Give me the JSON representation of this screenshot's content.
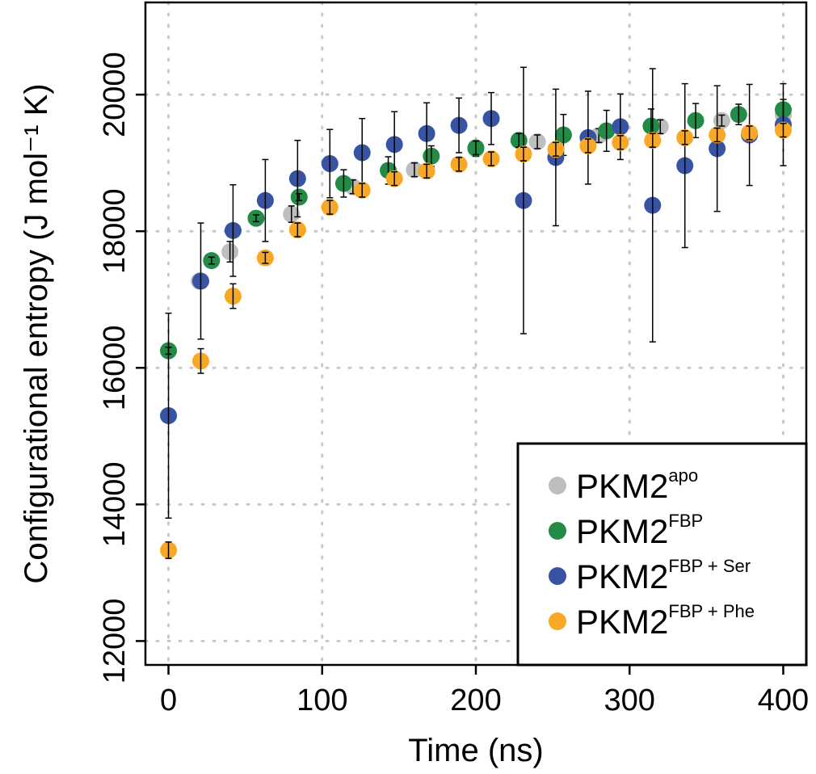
{
  "chart_data": {
    "type": "scatter",
    "xlabel": "Time (ns)",
    "ylabel": "Configurational entropy (J mol⁻¹ K)",
    "xlim": [
      -15,
      415
    ],
    "ylim": [
      11650,
      21350
    ],
    "x_ticks": [
      0,
      100,
      200,
      300,
      400
    ],
    "y_ticks": [
      12000,
      14000,
      16000,
      18000,
      20000
    ],
    "x_tick_labels": [
      "0",
      "100",
      "200",
      "300",
      "400"
    ],
    "y_tick_labels": [
      "12000",
      "14000",
      "16000",
      "18000",
      "20000"
    ],
    "grid": true,
    "legend_position": "bottom-right",
    "series": [
      {
        "name": "PKM2",
        "sup": "apo",
        "color": "#bebebe",
        "points": [
          {
            "x": 0,
            "y": 16250,
            "err": 100
          },
          {
            "x": 20,
            "y": 17270,
            "err": 80
          },
          {
            "x": 40,
            "y": 17700,
            "err": 150
          },
          {
            "x": 80,
            "y": 18250,
            "err": 120
          },
          {
            "x": 120,
            "y": 18650,
            "err": 100
          },
          {
            "x": 160,
            "y": 18900,
            "err": 100
          },
          {
            "x": 200,
            "y": 19200,
            "err": 100
          },
          {
            "x": 240,
            "y": 19310,
            "err": 100
          },
          {
            "x": 280,
            "y": 19400,
            "err": 100
          },
          {
            "x": 320,
            "y": 19530,
            "err": 100
          },
          {
            "x": 360,
            "y": 19620,
            "err": 80
          },
          {
            "x": 400,
            "y": 19700,
            "err": 80
          }
        ]
      },
      {
        "name": "PKM2",
        "sup": "FBP",
        "color": "#238b45",
        "points": [
          {
            "x": 0,
            "y": 16250,
            "err": 50
          },
          {
            "x": 28,
            "y": 17570,
            "err": 50
          },
          {
            "x": 57,
            "y": 18190,
            "err": 50
          },
          {
            "x": 85,
            "y": 18500,
            "err": 50
          },
          {
            "x": 114,
            "y": 18700,
            "err": 200
          },
          {
            "x": 143,
            "y": 18890,
            "err": 200
          },
          {
            "x": 171,
            "y": 19100,
            "err": 150
          },
          {
            "x": 200,
            "y": 19220,
            "err": 100
          },
          {
            "x": 228,
            "y": 19330,
            "err": 100
          },
          {
            "x": 257,
            "y": 19410,
            "err": 300
          },
          {
            "x": 285,
            "y": 19470,
            "err": 300
          },
          {
            "x": 314,
            "y": 19540,
            "err": 250
          },
          {
            "x": 343,
            "y": 19620,
            "err": 250
          },
          {
            "x": 371,
            "y": 19710,
            "err": 150
          },
          {
            "x": 400,
            "y": 19780,
            "err": 150
          }
        ]
      },
      {
        "name": "PKM2",
        "sup": "FBP + Ser",
        "color": "#3953a4",
        "points": [
          {
            "x": 0,
            "y": 15300,
            "err": 1500
          },
          {
            "x": 21,
            "y": 17270,
            "err": 850
          },
          {
            "x": 42,
            "y": 18010,
            "err": 670
          },
          {
            "x": 63,
            "y": 18450,
            "err": 600
          },
          {
            "x": 84,
            "y": 18770,
            "err": 560
          },
          {
            "x": 105,
            "y": 18990,
            "err": 500
          },
          {
            "x": 126,
            "y": 19150,
            "err": 500
          },
          {
            "x": 147,
            "y": 19270,
            "err": 480
          },
          {
            "x": 168,
            "y": 19430,
            "err": 450
          },
          {
            "x": 189,
            "y": 19550,
            "err": 400
          },
          {
            "x": 210,
            "y": 19650,
            "err": 380
          },
          {
            "x": 231,
            "y": 18450,
            "err": 1950
          },
          {
            "x": 252,
            "y": 19080,
            "err": 1000
          },
          {
            "x": 273,
            "y": 19370,
            "err": 680
          },
          {
            "x": 294,
            "y": 19530,
            "err": 480
          },
          {
            "x": 315,
            "y": 18380,
            "err": 2000
          },
          {
            "x": 336,
            "y": 18960,
            "err": 1200
          },
          {
            "x": 357,
            "y": 19210,
            "err": 920
          },
          {
            "x": 378,
            "y": 19410,
            "err": 740
          },
          {
            "x": 400,
            "y": 19560,
            "err": 600
          }
        ]
      },
      {
        "name": "PKM2",
        "sup": "FBP + Phe",
        "color": "#f9a825",
        "points": [
          {
            "x": 0,
            "y": 13330,
            "err": 120
          },
          {
            "x": 21,
            "y": 16100,
            "err": 180
          },
          {
            "x": 42,
            "y": 17050,
            "err": 180
          },
          {
            "x": 63,
            "y": 17610,
            "err": 80
          },
          {
            "x": 84,
            "y": 18020,
            "err": 100
          },
          {
            "x": 105,
            "y": 18350,
            "err": 100
          },
          {
            "x": 126,
            "y": 18600,
            "err": 100
          },
          {
            "x": 147,
            "y": 18770,
            "err": 100
          },
          {
            "x": 168,
            "y": 18880,
            "err": 100
          },
          {
            "x": 189,
            "y": 18980,
            "err": 100
          },
          {
            "x": 210,
            "y": 19060,
            "err": 100
          },
          {
            "x": 231,
            "y": 19130,
            "err": 100
          },
          {
            "x": 252,
            "y": 19200,
            "err": 100
          },
          {
            "x": 273,
            "y": 19250,
            "err": 100
          },
          {
            "x": 294,
            "y": 19300,
            "err": 100
          },
          {
            "x": 315,
            "y": 19330,
            "err": 100
          },
          {
            "x": 336,
            "y": 19370,
            "err": 100
          },
          {
            "x": 357,
            "y": 19410,
            "err": 100
          },
          {
            "x": 378,
            "y": 19440,
            "err": 100
          },
          {
            "x": 400,
            "y": 19480,
            "err": 100
          }
        ]
      }
    ]
  }
}
